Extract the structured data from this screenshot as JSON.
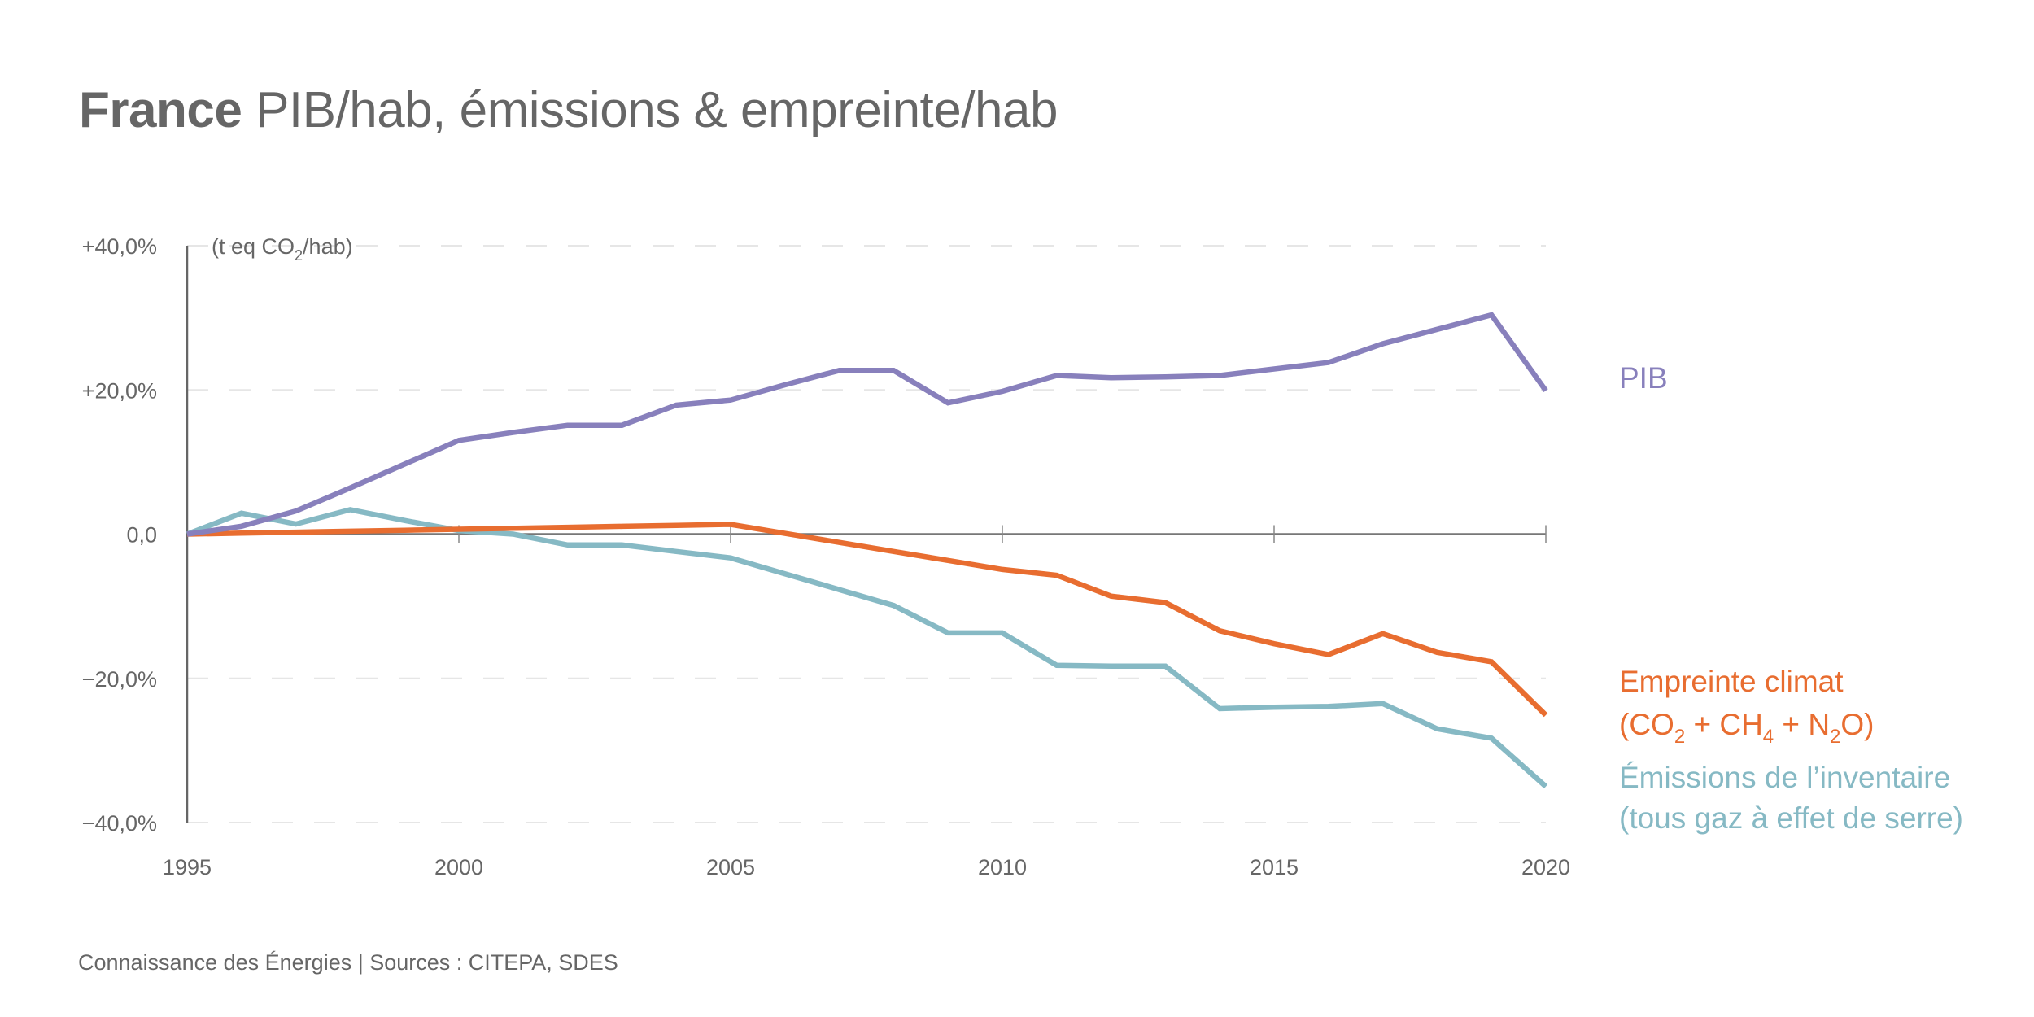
{
  "title": {
    "bold": "France",
    "rest": "PIB/hab, émissions & empreinte/hab"
  },
  "footer": "Connaissance des Énergies | Sources : CITEPA, SDES",
  "chart_data": {
    "type": "line",
    "title": "France PIB/hab, émissions & empreinte/hab",
    "xlabel": "",
    "ylabel": "(t eq CO2/hab)",
    "unit_label": {
      "prefix": "(t eq CO",
      "sub": "2",
      "suffix": "/hab)"
    },
    "xlim": [
      1995,
      2020
    ],
    "ylim": [
      -40,
      40
    ],
    "x_ticks": [
      1995,
      2000,
      2005,
      2010,
      2015,
      2020
    ],
    "x_tick_labels": [
      "1995",
      "2000",
      "2005",
      "2010",
      "2015",
      "2020"
    ],
    "y_ticks": [
      40,
      20,
      0,
      -20,
      -40
    ],
    "y_tick_labels": [
      "+40,0%",
      "+20,0%",
      "0,0",
      "−20,0%",
      "−40,0%"
    ],
    "grid": "horizontal dashed",
    "legend": "right, inline at line ends",
    "x": [
      1995,
      1996,
      1997,
      1998,
      1999,
      2000,
      2001,
      2002,
      2003,
      2004,
      2005,
      2006,
      2007,
      2008,
      2009,
      2010,
      2011,
      2012,
      2013,
      2014,
      2015,
      2016,
      2017,
      2018,
      2019,
      2020
    ],
    "series": [
      {
        "name": "PIB",
        "color": "#8880bc",
        "label_lines": [
          [
            {
              "t": "PIB"
            }
          ]
        ],
        "values": [
          0,
          1.1,
          3.2,
          6.4,
          9.7,
          13.0,
          14.1,
          15.1,
          15.1,
          17.9,
          18.6,
          20.7,
          22.7,
          22.7,
          18.2,
          19.8,
          22.0,
          21.7,
          21.8,
          22.0,
          22.9,
          23.8,
          26.4,
          28.4,
          30.4,
          19.9
        ]
      },
      {
        "name": "Empreinte climat (CO2 + CH4 + N2O)",
        "color": "#e86d30",
        "label_lines": [
          [
            {
              "t": "Empreinte climat"
            }
          ],
          [
            {
              "t": "(CO"
            },
            {
              "t": "2",
              "sub": true
            },
            {
              "t": " + CH"
            },
            {
              "t": "4",
              "sub": true
            },
            {
              "t": " + N"
            },
            {
              "t": "2",
              "sub": true
            },
            {
              "t": "O)"
            }
          ]
        ],
        "values": [
          0,
          0.14,
          0.27,
          0.41,
          0.54,
          0.68,
          0.81,
          0.95,
          1.08,
          1.22,
          1.35,
          0.1,
          -1.15,
          -2.4,
          -3.65,
          -4.9,
          -5.7,
          -8.6,
          -9.5,
          -13.4,
          -15.2,
          -16.7,
          -13.8,
          -16.4,
          -17.7,
          -25.1
        ]
      },
      {
        "name": "Émissions de l'inventaire (tous gaz à effet de serre)",
        "color": "#86b9c4",
        "label_lines": [
          [
            {
              "t": "Émissions de l’inventaire"
            }
          ],
          [
            {
              "t": "(tous gaz à effet de serre)"
            }
          ]
        ],
        "values": [
          0,
          2.9,
          1.4,
          3.4,
          1.9,
          0.5,
          0,
          -1.5,
          -1.5,
          -2.4,
          -3.3,
          -5.5,
          -7.7,
          -9.9,
          -13.7,
          -13.7,
          -18.2,
          -18.3,
          -18.3,
          -24.2,
          -24.0,
          -23.9,
          -23.5,
          -27.0,
          -28.3,
          -35.0
        ]
      }
    ]
  }
}
